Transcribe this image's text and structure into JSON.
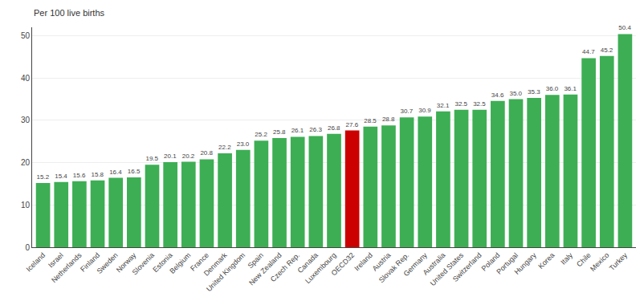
{
  "chart_data": {
    "type": "bar",
    "ylabel": "Per 100 live births",
    "categories": [
      "Iceland",
      "Israel",
      "Netherlands",
      "Finland",
      "Sweden",
      "Norway",
      "Slovenia",
      "Estonia",
      "Belgium",
      "France",
      "Denmark",
      "United Kingdom",
      "Spain",
      "New Zealand",
      "Czech Rep.",
      "Canada",
      "Luxembourg",
      "OECD32",
      "Ireland",
      "Austria",
      "Slovak Rep.",
      "Germany",
      "Australia",
      "United States",
      "Switzerland",
      "Poland",
      "Portugal",
      "Hungary",
      "Korea",
      "Italy",
      "Chile",
      "Mexico",
      "Turkey"
    ],
    "values": [
      15.2,
      15.4,
      15.6,
      15.8,
      16.4,
      16.5,
      19.5,
      20.1,
      20.2,
      20.8,
      22.2,
      23.0,
      25.2,
      25.8,
      26.1,
      26.3,
      26.8,
      27.6,
      28.5,
      28.8,
      30.7,
      30.9,
      32.1,
      32.5,
      32.5,
      34.6,
      35.0,
      35.3,
      36.0,
      36.1,
      44.7,
      45.2,
      50.4
    ],
    "value_labels": [
      "15.2",
      "15.4",
      "15.6",
      "15.8",
      "16.4",
      "16.5",
      "19.5",
      "20.1",
      "20.2",
      "20.8",
      "22.2",
      "23.0",
      "25.2",
      "25.8",
      "26.1",
      "26.3",
      "26.8",
      "27.6",
      "28.5",
      "28.8",
      "30.7",
      "30.9",
      "32.1",
      "32.5",
      "32.5",
      "34.6",
      "35.0",
      "35.3",
      "36.0",
      "36.1",
      "44.7",
      "45.2",
      "50.4"
    ],
    "colors": [
      "#3dae54",
      "#3dae54",
      "#3dae54",
      "#3dae54",
      "#3dae54",
      "#3dae54",
      "#3dae54",
      "#3dae54",
      "#3dae54",
      "#3dae54",
      "#3dae54",
      "#3dae54",
      "#3dae54",
      "#3dae54",
      "#3dae54",
      "#3dae54",
      "#3dae54",
      "#cc0000",
      "#3dae54",
      "#3dae54",
      "#3dae54",
      "#3dae54",
      "#3dae54",
      "#3dae54",
      "#3dae54",
      "#3dae54",
      "#3dae54",
      "#3dae54",
      "#3dae54",
      "#3dae54",
      "#3dae54",
      "#3dae54",
      "#3dae54"
    ],
    "ylim": [
      0,
      52
    ],
    "yticks": [
      0,
      10,
      20,
      30,
      40,
      50
    ],
    "grid": true,
    "data_labels": true
  }
}
